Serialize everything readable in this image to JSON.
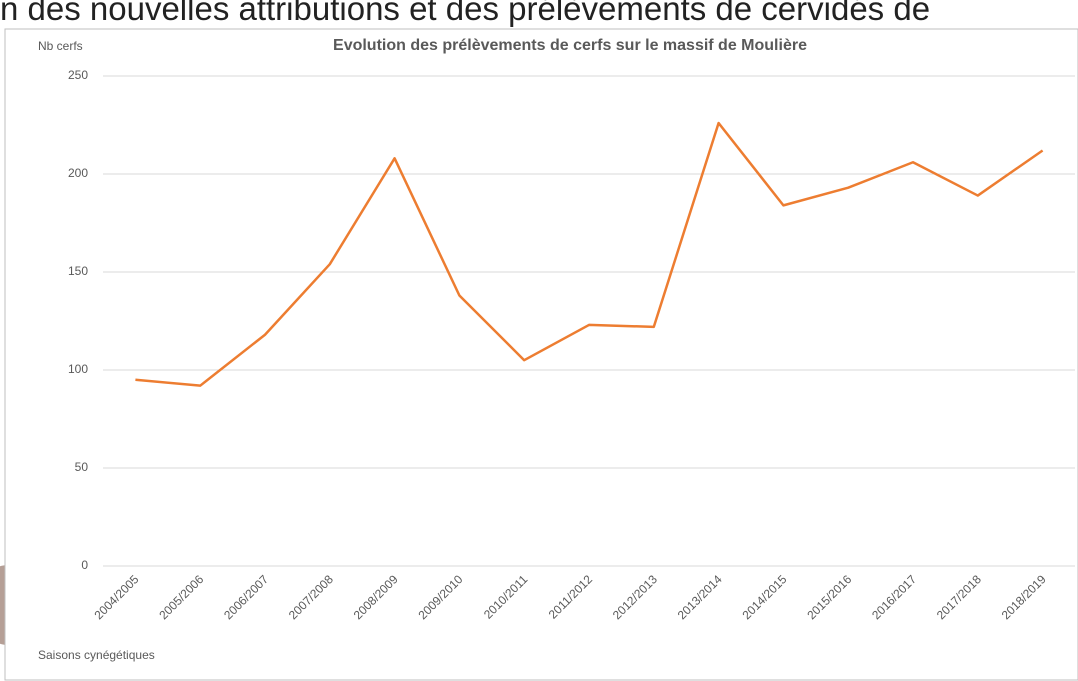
{
  "header_text": "n des nouvelles attributions et des prélèvements de cervidés de",
  "chart_data": {
    "type": "line",
    "title": "Evolution des prélèvements de cerfs sur le massif de Moulière",
    "y_label": "Nb cerfs",
    "x_label": "Saisons cynégétiques",
    "categories": [
      "2004/2005",
      "2005/2006",
      "2006/2007",
      "2007/2008",
      "2008/2009",
      "2009/2010",
      "2010/2011",
      "2011/2012",
      "2012/2013",
      "2013/2014",
      "2014/2015",
      "2015/2016",
      "2016/2017",
      "2017/2018",
      "2018/2019"
    ],
    "series": [
      {
        "name": "Prélèvements",
        "color": "#ed7d31",
        "values": [
          95,
          92,
          118,
          154,
          208,
          138,
          105,
          123,
          122,
          226,
          184,
          193,
          206,
          189,
          212
        ]
      }
    ],
    "ylim": [
      0,
      250
    ],
    "yticks": [
      0,
      50,
      100,
      150,
      200,
      250
    ],
    "grid": true
  }
}
